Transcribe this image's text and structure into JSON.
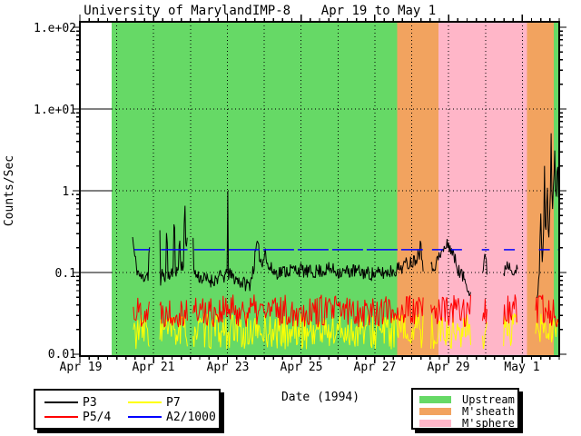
{
  "title": {
    "institution": "University of Maryland",
    "spacecraft": "IMP-8",
    "date_range": "Apr 19 to May 1"
  },
  "chart_data": {
    "type": "line",
    "title": "University of Maryland  IMP-8  Apr 19 to May 1",
    "xlabel": "Date (1994)",
    "ylabel": "Counts/Sec",
    "x_axis": {
      "unit": "days from Apr 19 1994",
      "min_day": 0,
      "max_day": 13,
      "major_tick_days": [
        0,
        2,
        4,
        6,
        8,
        10,
        12
      ],
      "tick_labels": [
        "Apr 19",
        "Apr 21",
        "Apr 23",
        "Apr 25",
        "Apr 27",
        "Apr 29",
        "May 1"
      ],
      "minor_tick_step_day": 0.25,
      "gridline_step_day": 1
    },
    "y_axis": {
      "scale": "log",
      "min": 0.01,
      "max": 100,
      "tick_values": [
        100,
        10,
        1,
        0.1,
        0.01
      ],
      "tick_labels": [
        "1.e+02",
        "1.e+01",
        "1.",
        "0.1",
        "0.01"
      ],
      "gridline_values": [
        10,
        1,
        0.1
      ]
    },
    "grid": "dotted",
    "region_types": [
      {
        "label": "Upstream",
        "color": "#66d966"
      },
      {
        "label": "M'sheath",
        "color": "#f2a35f"
      },
      {
        "label": "M'sphere",
        "color": "#ffb6c8"
      }
    ],
    "regions": [
      {
        "start_day": 0.86,
        "end_day": 8.6,
        "type": 0
      },
      {
        "start_day": 8.6,
        "end_day": 9.72,
        "type": 1
      },
      {
        "start_day": 9.72,
        "end_day": 12.12,
        "type": 2
      },
      {
        "start_day": 12.12,
        "end_day": 12.85,
        "type": 1
      },
      {
        "start_day": 12.85,
        "end_day": 13.0,
        "type": 0
      }
    ],
    "series": [
      {
        "name": "P3",
        "color": "#000000",
        "style": "anchors",
        "noise_log_amp": 0.09,
        "step_day": 0.02,
        "seed": 11,
        "segments": [
          {
            "anchors": [
              [
                1.43,
                0.27
              ],
              [
                1.48,
                0.16
              ],
              [
                1.55,
                0.11
              ],
              [
                1.65,
                0.085
              ],
              [
                1.75,
                0.09
              ],
              [
                1.82,
                0.1
              ],
              [
                1.86,
                0.09
              ],
              [
                1.88,
                0.3
              ],
              [
                1.9,
                0.13
              ]
            ]
          },
          {
            "anchors": [
              [
                2.17,
                0.34
              ],
              [
                2.19,
                0.06
              ],
              [
                2.22,
                0.1
              ],
              [
                2.3,
                0.09
              ],
              [
                2.34,
                0.1
              ],
              [
                2.36,
                0.62
              ],
              [
                2.38,
                0.1
              ],
              [
                2.44,
                0.085
              ],
              [
                2.5,
                0.1
              ],
              [
                2.54,
                0.11
              ],
              [
                2.56,
                1.05
              ],
              [
                2.58,
                0.13
              ],
              [
                2.62,
                0.1
              ],
              [
                2.68,
                0.11
              ],
              [
                2.7,
                0.5
              ],
              [
                2.72,
                0.12
              ],
              [
                2.78,
                0.13
              ],
              [
                2.82,
                0.12
              ],
              [
                2.84,
                1.15
              ],
              [
                2.86,
                0.25
              ],
              [
                2.9,
                0.2
              ],
              [
                2.92,
                0.4
              ]
            ]
          },
          {
            "anchors": [
              [
                3.07,
                0.32
              ],
              [
                3.09,
                0.1
              ],
              [
                3.2,
                0.09
              ],
              [
                3.4,
                0.082
              ],
              [
                3.6,
                0.08
              ],
              [
                3.8,
                0.088
              ],
              [
                3.99,
                0.09
              ],
              [
                4.01,
                1.15
              ],
              [
                4.03,
                0.095
              ],
              [
                4.2,
                0.085
              ],
              [
                4.4,
                0.075
              ],
              [
                4.6,
                0.07
              ],
              [
                4.72,
                0.12
              ],
              [
                4.8,
                0.22
              ],
              [
                4.88,
                0.16
              ],
              [
                4.95,
                0.12
              ],
              [
                5.02,
                0.22
              ],
              [
                5.08,
                0.12
              ],
              [
                5.3,
                0.1
              ],
              [
                5.6,
                0.105
              ],
              [
                5.9,
                0.11
              ],
              [
                6.2,
                0.1
              ],
              [
                6.5,
                0.105
              ],
              [
                6.8,
                0.11
              ],
              [
                7.1,
                0.1
              ],
              [
                7.4,
                0.105
              ],
              [
                7.7,
                0.1
              ],
              [
                8.0,
                0.095
              ],
              [
                8.3,
                0.1
              ],
              [
                8.6,
                0.11
              ],
              [
                8.9,
                0.13
              ],
              [
                9.05,
                0.14
              ],
              [
                9.15,
                0.16
              ],
              [
                9.22,
                0.18
              ],
              [
                9.24,
                0.48
              ],
              [
                9.26,
                0.16
              ],
              [
                9.32,
                0.12
              ]
            ]
          },
          {
            "anchors": [
              [
                9.52,
                0.11
              ],
              [
                9.65,
                0.13
              ],
              [
                9.8,
                0.17
              ],
              [
                9.9,
                0.2
              ],
              [
                10.0,
                0.22
              ],
              [
                10.1,
                0.18
              ],
              [
                10.2,
                0.13
              ],
              [
                10.3,
                0.1
              ],
              [
                10.42,
                0.085
              ],
              [
                10.52,
                0.07
              ],
              [
                10.6,
                0.055
              ]
            ]
          },
          {
            "anchors": [
              [
                10.92,
                0.1
              ],
              [
                10.98,
                0.16
              ],
              [
                11.05,
                0.1
              ]
            ]
          },
          {
            "anchors": [
              [
                11.49,
                0.1
              ],
              [
                11.58,
                0.13
              ],
              [
                11.68,
                0.12
              ],
              [
                11.78,
                0.11
              ],
              [
                11.87,
                0.1
              ]
            ]
          },
          {
            "anchors": [
              [
                12.4,
                0.045
              ],
              [
                12.46,
                0.1
              ],
              [
                12.5,
                0.55
              ],
              [
                12.53,
                0.13
              ],
              [
                12.58,
                0.3
              ],
              [
                12.6,
                2.2
              ],
              [
                12.63,
                0.2
              ],
              [
                12.68,
                1.2
              ],
              [
                12.71,
                0.25
              ],
              [
                12.75,
                0.6
              ],
              [
                12.78,
                4.7
              ],
              [
                12.81,
                0.4
              ],
              [
                12.85,
                1.5
              ],
              [
                12.88,
                2.6
              ],
              [
                12.91,
                0.5
              ],
              [
                12.95,
                3.2
              ],
              [
                12.98,
                0.9
              ],
              [
                13.0,
                1.6
              ]
            ]
          }
        ]
      },
      {
        "name": "P5/4",
        "color": "#ff0000",
        "style": "flat_noise",
        "base": 0.034,
        "noise_log_amp": 0.2,
        "step_day": 0.024,
        "seed": 22,
        "segments": [
          {
            "start": 1.45,
            "end": 1.9
          },
          {
            "start": 2.17,
            "end": 2.92
          },
          {
            "start": 3.07,
            "end": 9.32
          },
          {
            "start": 9.52,
            "end": 10.6
          },
          {
            "start": 10.92,
            "end": 11.05
          },
          {
            "start": 11.49,
            "end": 11.87
          },
          {
            "start": 12.36,
            "end": 13.0
          }
        ]
      },
      {
        "name": "P7",
        "color": "#ffff00",
        "style": "flat_noise",
        "base": 0.019,
        "noise_log_amp": 0.22,
        "step_day": 0.024,
        "seed": 33,
        "segments": [
          {
            "start": 1.45,
            "end": 1.9
          },
          {
            "start": 2.17,
            "end": 2.92
          },
          {
            "start": 3.07,
            "end": 9.32
          },
          {
            "start": 9.52,
            "end": 10.6
          },
          {
            "start": 10.92,
            "end": 11.05
          },
          {
            "start": 11.49,
            "end": 11.87
          },
          {
            "start": 12.36,
            "end": 13.0
          }
        ]
      },
      {
        "name": "A2/1000",
        "color": "#0000ff",
        "style": "const_line",
        "value": 0.19,
        "segments": [
          {
            "start": 1.47,
            "end": 1.9,
            "dash": "34 4"
          },
          {
            "start": 2.2,
            "end": 2.92,
            "dash": "34 4"
          },
          {
            "start": 3.1,
            "end": 9.3,
            "dash": "34 4"
          },
          {
            "start": 9.55,
            "end": 10.5,
            "dash": "12 9"
          },
          {
            "start": 10.9,
            "end": 11.1,
            "dash": "12 9"
          },
          {
            "start": 11.5,
            "end": 11.85,
            "dash": "12 9"
          },
          {
            "start": 12.45,
            "end": 12.98,
            "dash": "12 9"
          }
        ]
      }
    ],
    "legend_position": "below"
  }
}
